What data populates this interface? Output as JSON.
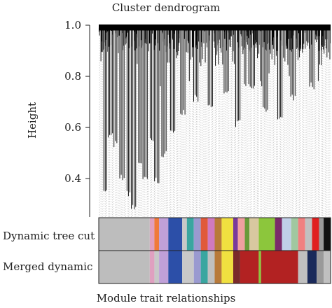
{
  "chart_data": {
    "type": "dendrogram",
    "title": "Cluster dendrogram",
    "ylabel": "Height",
    "ylim": [
      0.25,
      1.0
    ],
    "yticks": [
      0.4,
      0.6,
      0.8,
      1.0
    ],
    "tick_labels": [
      "0.4",
      "0.6",
      "0.8",
      "1.0"
    ],
    "grid": false,
    "leaf_count": 160,
    "merge_height": 0.99,
    "tall_branch_minima": [
      {
        "x": 0.03,
        "y": 0.33
      },
      {
        "x": 0.05,
        "y": 0.55
      },
      {
        "x": 0.07,
        "y": 0.52
      },
      {
        "x": 0.1,
        "y": 0.39
      },
      {
        "x": 0.13,
        "y": 0.33
      },
      {
        "x": 0.15,
        "y": 0.27
      },
      {
        "x": 0.18,
        "y": 0.45
      },
      {
        "x": 0.2,
        "y": 0.38
      },
      {
        "x": 0.23,
        "y": 0.53
      },
      {
        "x": 0.25,
        "y": 0.38
      },
      {
        "x": 0.28,
        "y": 0.48
      },
      {
        "x": 0.32,
        "y": 0.58
      },
      {
        "x": 0.36,
        "y": 0.65
      },
      {
        "x": 0.42,
        "y": 0.7
      },
      {
        "x": 0.48,
        "y": 0.67
      },
      {
        "x": 0.55,
        "y": 0.72
      },
      {
        "x": 0.6,
        "y": 0.6
      },
      {
        "x": 0.66,
        "y": 0.74
      },
      {
        "x": 0.72,
        "y": 0.66
      },
      {
        "x": 0.78,
        "y": 0.62
      },
      {
        "x": 0.84,
        "y": 0.7
      },
      {
        "x": 0.92,
        "y": 0.75
      }
    ],
    "color_rows": [
      {
        "label": "Dynamic tree cut",
        "segments": [
          {
            "start": 0.0,
            "end": 0.22,
            "color": "#bdbdbd"
          },
          {
            "start": 0.22,
            "end": 0.24,
            "color": "#e0a0c0"
          },
          {
            "start": 0.24,
            "end": 0.26,
            "color": "#f07a3a"
          },
          {
            "start": 0.26,
            "end": 0.3,
            "color": "#c0a0d8"
          },
          {
            "start": 0.3,
            "end": 0.36,
            "color": "#2c4fa8"
          },
          {
            "start": 0.36,
            "end": 0.38,
            "color": "#c8c8c8"
          },
          {
            "start": 0.38,
            "end": 0.41,
            "color": "#3aa6a0"
          },
          {
            "start": 0.41,
            "end": 0.44,
            "color": "#9a9ad0"
          },
          {
            "start": 0.44,
            "end": 0.47,
            "color": "#e05a3a"
          },
          {
            "start": 0.47,
            "end": 0.5,
            "color": "#d07ac0"
          },
          {
            "start": 0.5,
            "end": 0.53,
            "color": "#b87a3a"
          },
          {
            "start": 0.53,
            "end": 0.58,
            "color": "#f0e040"
          },
          {
            "start": 0.58,
            "end": 0.6,
            "color": "#7a3a9a"
          },
          {
            "start": 0.6,
            "end": 0.63,
            "color": "#f0a0a0"
          },
          {
            "start": 0.63,
            "end": 0.65,
            "color": "#6a9a3a"
          },
          {
            "start": 0.65,
            "end": 0.69,
            "color": "#d8c8a0"
          },
          {
            "start": 0.69,
            "end": 0.76,
            "color": "#8cc63c"
          },
          {
            "start": 0.76,
            "end": 0.79,
            "color": "#7a2a6a"
          },
          {
            "start": 0.79,
            "end": 0.83,
            "color": "#c0d0e8"
          },
          {
            "start": 0.83,
            "end": 0.86,
            "color": "#a0c8a0"
          },
          {
            "start": 0.86,
            "end": 0.89,
            "color": "#f08080"
          },
          {
            "start": 0.89,
            "end": 0.92,
            "color": "#c0c0c0"
          },
          {
            "start": 0.92,
            "end": 0.95,
            "color": "#e02020"
          },
          {
            "start": 0.95,
            "end": 0.97,
            "color": "#9a9a9a"
          },
          {
            "start": 0.97,
            "end": 1.0,
            "color": "#111111"
          }
        ]
      },
      {
        "label": "Merged dynamic",
        "segments": [
          {
            "start": 0.0,
            "end": 0.22,
            "color": "#bdbdbd"
          },
          {
            "start": 0.22,
            "end": 0.24,
            "color": "#e0a0c0"
          },
          {
            "start": 0.24,
            "end": 0.26,
            "color": "#c8c8c8"
          },
          {
            "start": 0.26,
            "end": 0.3,
            "color": "#c0a0d8"
          },
          {
            "start": 0.3,
            "end": 0.36,
            "color": "#2c4fa8"
          },
          {
            "start": 0.36,
            "end": 0.41,
            "color": "#c8c8c8"
          },
          {
            "start": 0.41,
            "end": 0.44,
            "color": "#9a9ad0"
          },
          {
            "start": 0.44,
            "end": 0.47,
            "color": "#3aa6a0"
          },
          {
            "start": 0.47,
            "end": 0.5,
            "color": "#c0c0c0"
          },
          {
            "start": 0.5,
            "end": 0.53,
            "color": "#b87a3a"
          },
          {
            "start": 0.53,
            "end": 0.58,
            "color": "#f0e040"
          },
          {
            "start": 0.58,
            "end": 0.61,
            "color": "#7a2a2a"
          },
          {
            "start": 0.61,
            "end": 0.69,
            "color": "#b22222"
          },
          {
            "start": 0.69,
            "end": 0.7,
            "color": "#8cc63c"
          },
          {
            "start": 0.7,
            "end": 0.86,
            "color": "#b22222"
          },
          {
            "start": 0.86,
            "end": 0.9,
            "color": "#c0c0c0"
          },
          {
            "start": 0.9,
            "end": 0.94,
            "color": "#1a2a5a"
          },
          {
            "start": 0.94,
            "end": 0.97,
            "color": "#9a9a9a"
          },
          {
            "start": 0.97,
            "end": 1.0,
            "color": "#c0c0c0"
          }
        ]
      }
    ]
  },
  "footer": "Module trait relationships"
}
